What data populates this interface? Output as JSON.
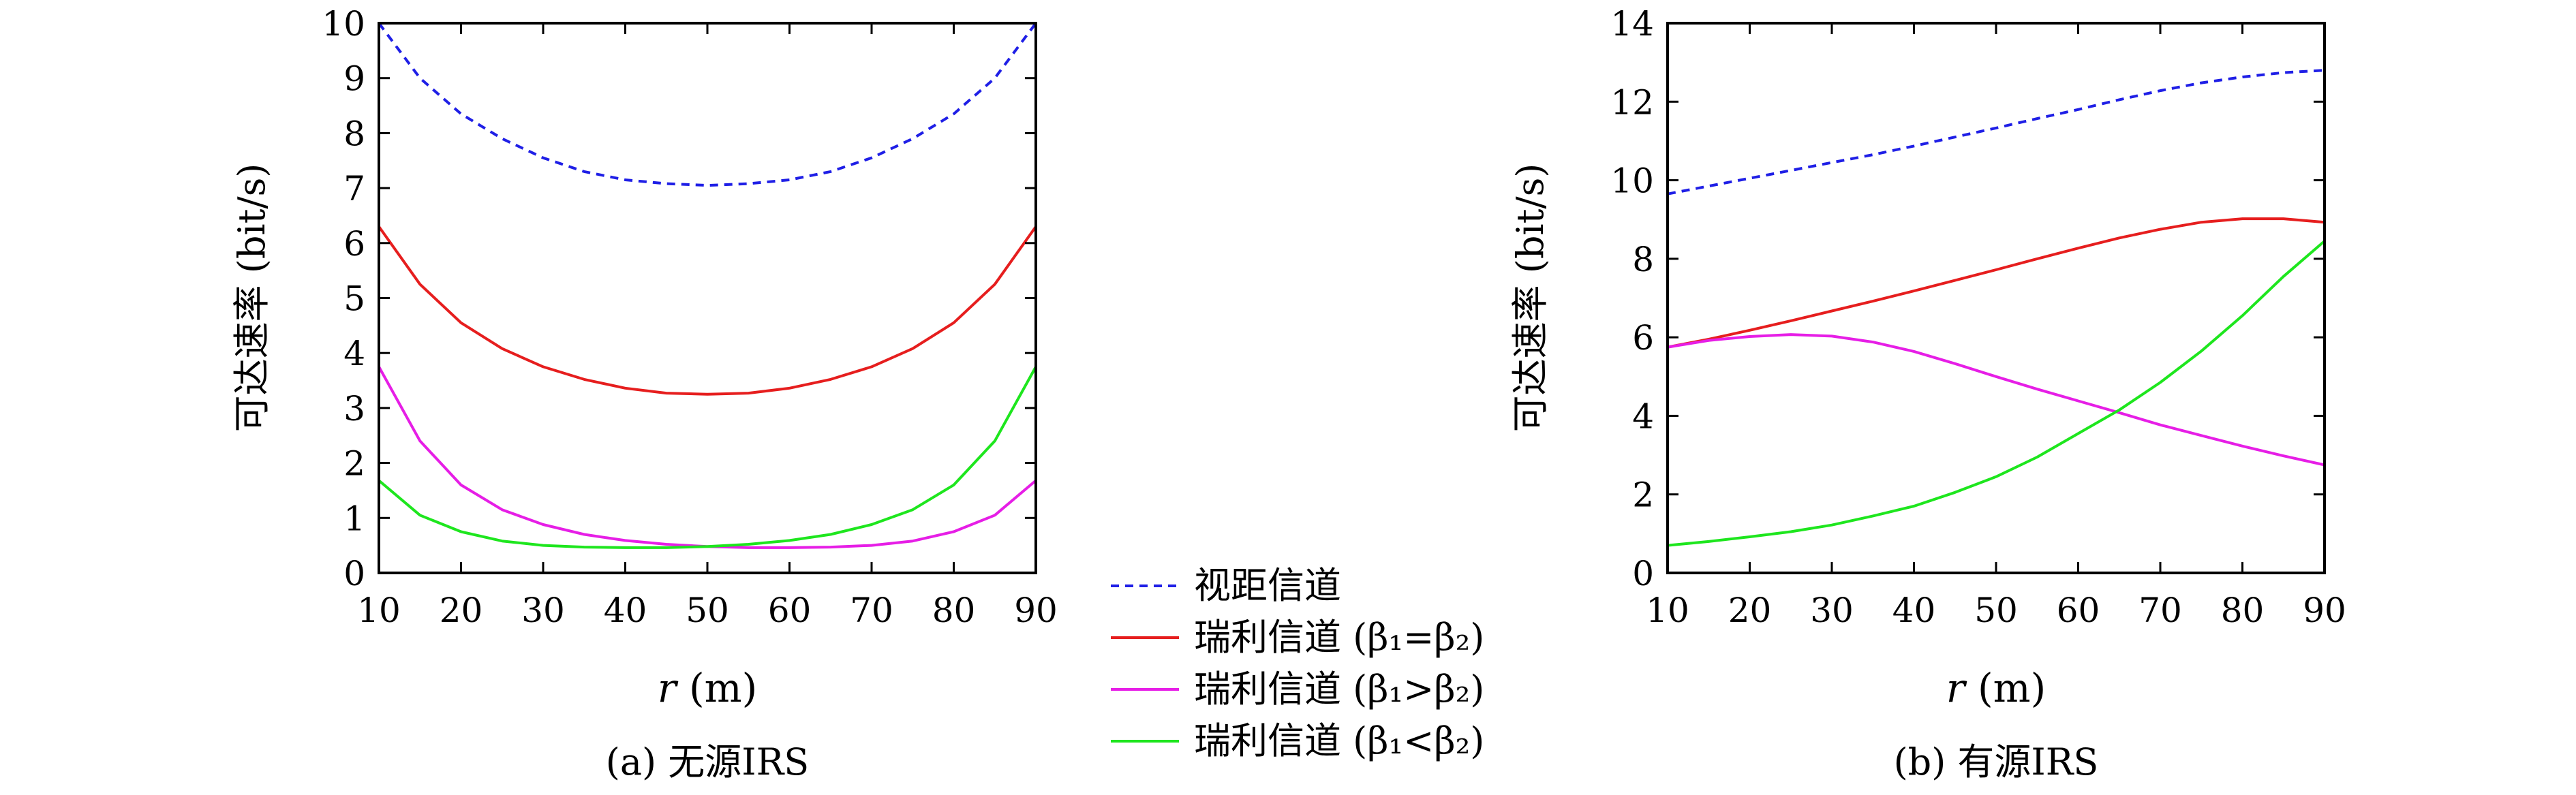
{
  "chart_data": [
    {
      "type": "line",
      "id": "a",
      "caption": "(a) 无源IRS",
      "ylabel": "可达速率 (bit/s)",
      "xlabel_var": "r",
      "xlabel_unit": "(m)",
      "xlim": [
        10,
        90
      ],
      "ylim": [
        0,
        10
      ],
      "xticks": [
        10,
        20,
        30,
        40,
        50,
        60,
        70,
        80,
        90
      ],
      "yticks": [
        0,
        1,
        2,
        3,
        4,
        5,
        6,
        7,
        8,
        9,
        10
      ],
      "x": [
        10,
        15,
        20,
        25,
        30,
        35,
        40,
        45,
        50,
        55,
        60,
        65,
        70,
        75,
        80,
        85,
        90
      ],
      "series": [
        {
          "key": "los",
          "values": [
            10.0,
            9.0,
            8.35,
            7.9,
            7.55,
            7.3,
            7.15,
            7.08,
            7.05,
            7.08,
            7.15,
            7.3,
            7.55,
            7.9,
            8.35,
            9.0,
            10.0
          ]
        },
        {
          "key": "ray_eq",
          "values": [
            6.3,
            5.25,
            4.55,
            4.08,
            3.75,
            3.52,
            3.36,
            3.27,
            3.25,
            3.27,
            3.36,
            3.52,
            3.75,
            4.08,
            4.55,
            5.25,
            6.3
          ]
        },
        {
          "key": "ray_gt",
          "values": [
            3.75,
            2.4,
            1.6,
            1.15,
            0.88,
            0.7,
            0.59,
            0.52,
            0.48,
            0.46,
            0.46,
            0.47,
            0.5,
            0.58,
            0.75,
            1.05,
            1.68
          ]
        },
        {
          "key": "ray_lt",
          "values": [
            1.68,
            1.05,
            0.75,
            0.58,
            0.5,
            0.47,
            0.46,
            0.46,
            0.48,
            0.52,
            0.59,
            0.7,
            0.88,
            1.15,
            1.6,
            2.4,
            3.75
          ]
        }
      ]
    },
    {
      "type": "line",
      "id": "b",
      "caption": "(b) 有源IRS",
      "ylabel": "可达速率 (bit/s)",
      "xlabel_var": "r",
      "xlabel_unit": "(m)",
      "xlim": [
        10,
        90
      ],
      "ylim": [
        0,
        14
      ],
      "xticks": [
        10,
        20,
        30,
        40,
        50,
        60,
        70,
        80,
        90
      ],
      "yticks": [
        0,
        2,
        4,
        6,
        8,
        10,
        12,
        14
      ],
      "x": [
        10,
        15,
        20,
        25,
        30,
        35,
        40,
        45,
        50,
        55,
        60,
        65,
        70,
        75,
        80,
        85,
        90
      ],
      "series": [
        {
          "key": "los",
          "values": [
            9.65,
            9.85,
            10.05,
            10.25,
            10.45,
            10.65,
            10.87,
            11.1,
            11.33,
            11.57,
            11.8,
            12.05,
            12.28,
            12.48,
            12.63,
            12.74,
            12.8
          ]
        },
        {
          "key": "ray_eq",
          "values": [
            5.75,
            5.95,
            6.18,
            6.42,
            6.67,
            6.92,
            7.18,
            7.45,
            7.72,
            8.0,
            8.27,
            8.53,
            8.75,
            8.93,
            9.02,
            9.02,
            8.93
          ]
        },
        {
          "key": "ray_gt",
          "values": [
            5.75,
            5.92,
            6.02,
            6.07,
            6.03,
            5.88,
            5.64,
            5.33,
            5.0,
            4.68,
            4.38,
            4.08,
            3.77,
            3.5,
            3.23,
            2.98,
            2.75
          ]
        },
        {
          "key": "ray_lt",
          "values": [
            0.7,
            0.8,
            0.92,
            1.05,
            1.22,
            1.45,
            1.7,
            2.05,
            2.45,
            2.95,
            3.55,
            4.15,
            4.85,
            5.65,
            6.55,
            7.55,
            8.45
          ]
        }
      ]
    }
  ],
  "legend": [
    {
      "key": "los",
      "label": "视距信道",
      "suffix": "",
      "color": "#1f1fe6",
      "dash": "12,9"
    },
    {
      "key": "ray_eq",
      "label": "瑞利信道",
      "suffix": "(β₁=β₂)",
      "color": "#e61e1e",
      "dash": ""
    },
    {
      "key": "ray_gt",
      "label": "瑞利信道",
      "suffix": "(β₁>β₂)",
      "color": "#e61ee6",
      "dash": ""
    },
    {
      "key": "ray_lt",
      "label": "瑞利信道",
      "suffix": "(β₁<β₂)",
      "color": "#1ee61e",
      "dash": ""
    }
  ]
}
